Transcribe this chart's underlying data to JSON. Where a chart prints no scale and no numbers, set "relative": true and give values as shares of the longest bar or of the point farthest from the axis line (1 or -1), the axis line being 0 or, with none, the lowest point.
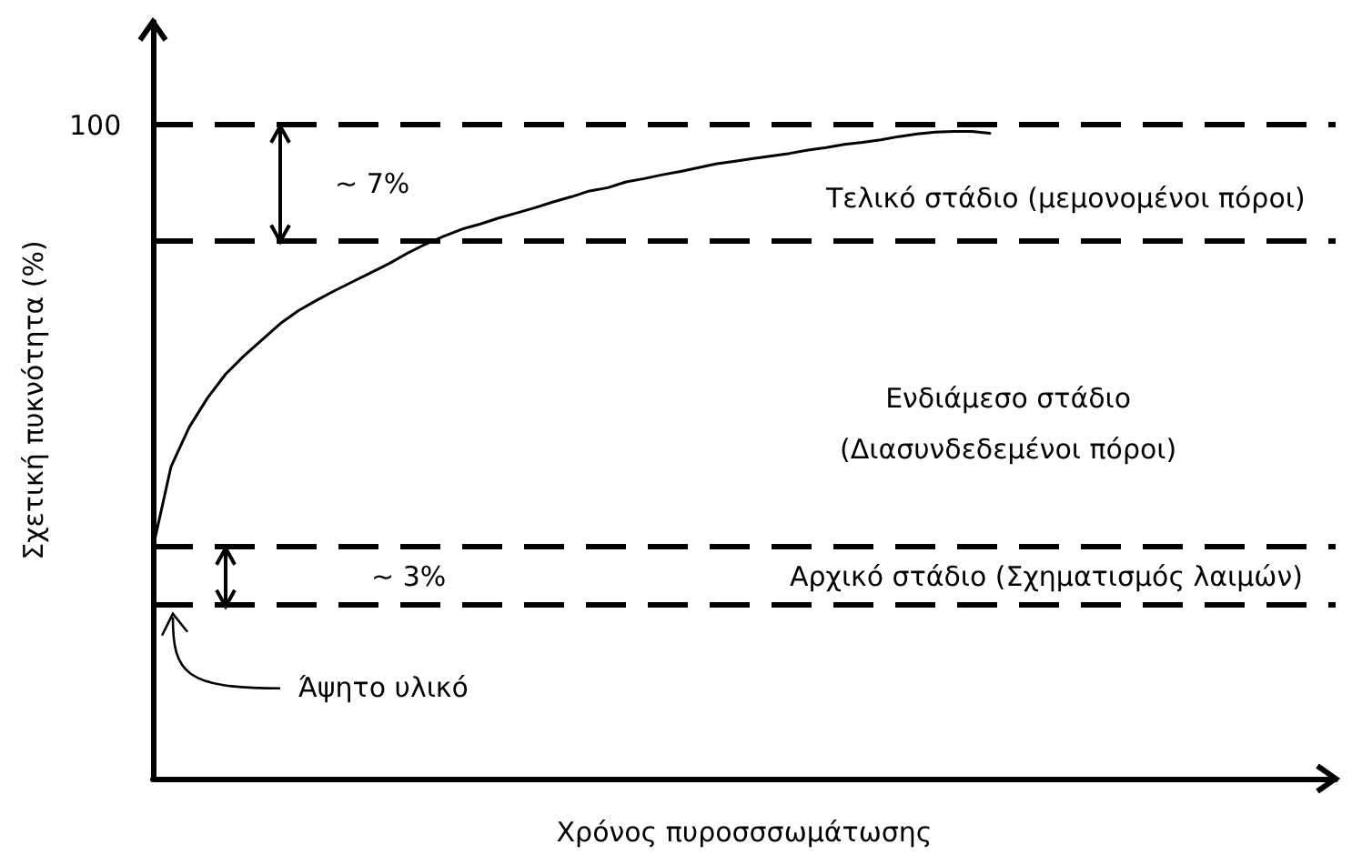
{
  "chart_data": {
    "type": "line",
    "relative": true,
    "xlabel": "Χρόνος πυροσσσωμάτωσης",
    "ylabel": "Σχετική πυκνότητα (%)",
    "categories": [
      null,
      null,
      null,
      null,
      null,
      null,
      null,
      null,
      null,
      null,
      null,
      null,
      null,
      null,
      null,
      null,
      null,
      null,
      null,
      null,
      null,
      null,
      null,
      null,
      null,
      null,
      null,
      null,
      null,
      null,
      null,
      null,
      null,
      null,
      null,
      null,
      null,
      null,
      null,
      null,
      null,
      null,
      null,
      null,
      null,
      null,
      null,
      null,
      null,
      null,
      null,
      null,
      null,
      null,
      null,
      null,
      null,
      null,
      null,
      null,
      null,
      null,
      null,
      null,
      null,
      null
    ],
    "series": [
      {
        "color": "#000000",
        "values": [
          0.356,
          0.482,
          0.543,
          0.588,
          0.625,
          0.653,
          0.678,
          0.703,
          0.723,
          0.739,
          0.754,
          0.768,
          0.782,
          0.796,
          0.812,
          0.826,
          0.838,
          0.849,
          0.857,
          0.866,
          0.874,
          0.882,
          0.891,
          0.899,
          0.908,
          0.913,
          0.922,
          0.927,
          0.933,
          0.938,
          0.944,
          0.95,
          0.954,
          0.958,
          0.962,
          0.966,
          0.971,
          0.975,
          0.98,
          0.983,
          0.987,
          0.992,
          0.996,
          0.999,
          1.0,
          1.0,
          0.997,
          null,
          null,
          null,
          null,
          null,
          null,
          null,
          null,
          null,
          null,
          null,
          null,
          null,
          null,
          null,
          null,
          null,
          null,
          null
        ]
      }
    ],
    "ref_lines": [
      {
        "axis": "y",
        "value": 1.008,
        "color": "#000000",
        "line_style": "dashed"
      },
      {
        "axis": "y",
        "value": 0.83,
        "color": "#000000",
        "line_style": "dashed"
      },
      {
        "axis": "y",
        "value": 0.356,
        "color": "#000000",
        "line_style": "dashed"
      },
      {
        "axis": "y",
        "value": 0.266,
        "color": "#000000",
        "line_style": "dashed"
      }
    ],
    "annotations": [
      "~ 7%",
      "Τελικό στάδιο (μεμονομένοι πόροι)",
      "Ενδιάμεσο στάδιο\n(Διασυνδεδεμένοι πόροι)",
      "~ 3%",
      "Αρχικό στάδιο (Σχηματισμός λαιμών)",
      "Άψητο υλικό",
      "100"
    ],
    "marker": "none",
    "line_style": "solid",
    "grid": false
  }
}
